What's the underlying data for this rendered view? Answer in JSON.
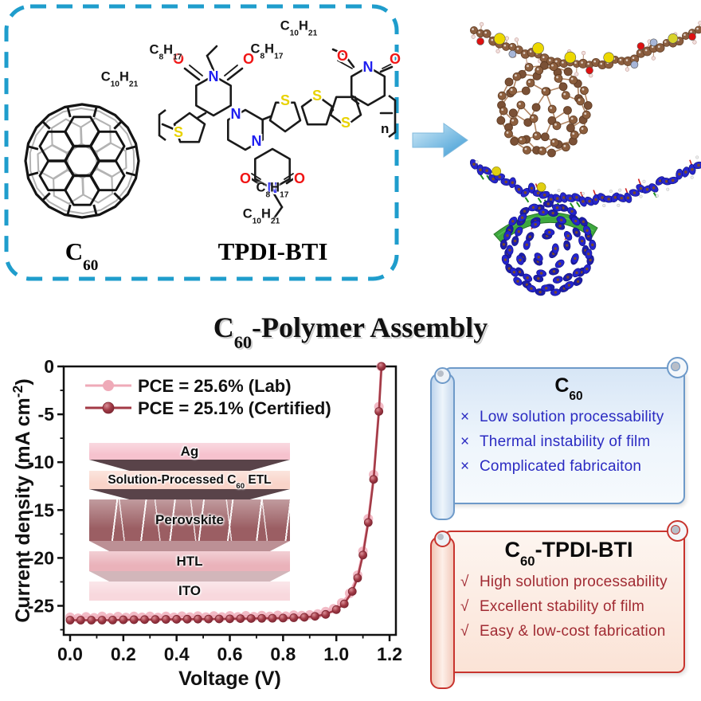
{
  "box": {
    "border_color": "#1f9dcc",
    "c60_label": "C_{60}",
    "polymer_label": "TPDI-BTI",
    "alkyl_labels": {
      "a1": "C_{8}H_{17}",
      "a2": "C_{10}H_{21}",
      "b1": "C_{10}H_{21}",
      "b2": "C_{8}H_{17}",
      "c1": "C_{8}H_{17}",
      "c2": "C_{10}H_{21}"
    },
    "repeat_label": "n",
    "atom_colors": {
      "S": "#e8d200",
      "N": "#2020f0",
      "O": "#f01515",
      "bond": "#1a1a1a"
    }
  },
  "title": "C_{60}-Polymer Assembly",
  "chart_data": {
    "type": "line",
    "xlabel": "Voltage (V)",
    "ylabel": "Current density (mA cm^{-2})",
    "xlim": [
      0,
      1.2
    ],
    "ylim": [
      -28,
      0
    ],
    "x_ticks": [
      0.0,
      0.2,
      0.4,
      0.6,
      0.8,
      1.0,
      1.2
    ],
    "y_ticks": [
      0,
      -5,
      -10,
      -15,
      -20,
      -25
    ],
    "grid": false,
    "legend_position": "top-left",
    "series": [
      {
        "name": "PCE = 25.6% (Lab)",
        "color": "#efaab8",
        "marker_radius": 6,
        "points": [
          [
            0.0,
            -26.2
          ],
          [
            0.03,
            -26.3
          ],
          [
            0.06,
            -26.15
          ],
          [
            0.09,
            -26.25
          ],
          [
            0.12,
            -26.1
          ],
          [
            0.15,
            -26.25
          ],
          [
            0.18,
            -26.12
          ],
          [
            0.21,
            -26.22
          ],
          [
            0.24,
            -26.1
          ],
          [
            0.27,
            -26.2
          ],
          [
            0.3,
            -26.1
          ],
          [
            0.33,
            -26.22
          ],
          [
            0.36,
            -26.1
          ],
          [
            0.39,
            -26.2
          ],
          [
            0.42,
            -26.08
          ],
          [
            0.45,
            -26.18
          ],
          [
            0.48,
            -26.07
          ],
          [
            0.51,
            -26.17
          ],
          [
            0.54,
            -26.06
          ],
          [
            0.57,
            -26.16
          ],
          [
            0.6,
            -26.05
          ],
          [
            0.63,
            -26.15
          ],
          [
            0.66,
            -26.04
          ],
          [
            0.69,
            -26.13
          ],
          [
            0.72,
            -26.02
          ],
          [
            0.75,
            -26.1
          ],
          [
            0.78,
            -26.0
          ],
          [
            0.81,
            -26.08
          ],
          [
            0.84,
            -25.98
          ],
          [
            0.87,
            -26.02
          ],
          [
            0.9,
            -25.95
          ],
          [
            0.93,
            -25.85
          ],
          [
            0.96,
            -25.6
          ],
          [
            0.99,
            -25.3
          ],
          [
            1.02,
            -24.7
          ],
          [
            1.05,
            -23.7
          ],
          [
            1.08,
            -21.8
          ],
          [
            1.1,
            -19.3
          ],
          [
            1.12,
            -15.9
          ],
          [
            1.14,
            -11.3
          ],
          [
            1.16,
            -4.2
          ],
          [
            1.168,
            0.0
          ]
        ]
      },
      {
        "name": "PCE = 25.1% (Certified)",
        "color": "#a33a46",
        "marker_radius": 5,
        "points": [
          [
            0.0,
            -26.5
          ],
          [
            0.04,
            -26.5
          ],
          [
            0.08,
            -26.5
          ],
          [
            0.12,
            -26.5
          ],
          [
            0.16,
            -26.49
          ],
          [
            0.2,
            -26.46
          ],
          [
            0.24,
            -26.45
          ],
          [
            0.28,
            -26.44
          ],
          [
            0.32,
            -26.43
          ],
          [
            0.36,
            -26.42
          ],
          [
            0.4,
            -26.41
          ],
          [
            0.44,
            -26.4
          ],
          [
            0.48,
            -26.39
          ],
          [
            0.52,
            -26.38
          ],
          [
            0.56,
            -26.37
          ],
          [
            0.6,
            -26.36
          ],
          [
            0.64,
            -26.34
          ],
          [
            0.68,
            -26.33
          ],
          [
            0.72,
            -26.31
          ],
          [
            0.76,
            -26.3
          ],
          [
            0.8,
            -26.28
          ],
          [
            0.84,
            -26.25
          ],
          [
            0.88,
            -26.2
          ],
          [
            0.92,
            -26.1
          ],
          [
            0.96,
            -25.9
          ],
          [
            1.0,
            -25.4
          ],
          [
            1.03,
            -24.8
          ],
          [
            1.06,
            -23.5
          ],
          [
            1.08,
            -22.1
          ],
          [
            1.1,
            -19.7
          ],
          [
            1.12,
            -16.3
          ],
          [
            1.14,
            -11.8
          ],
          [
            1.16,
            -4.7
          ],
          [
            1.17,
            0.0
          ]
        ]
      }
    ],
    "inset": {
      "layers": [
        {
          "label": "Ag",
          "color": "#f6c2ce"
        },
        {
          "label": "Solution-Processed C_{60} ETL",
          "color": "#f9d4c9"
        },
        {
          "label": "Perovskite",
          "color": "#9b5e63"
        },
        {
          "label": "HTL",
          "color": "#eab2ba"
        },
        {
          "label": "ITO",
          "color": "#f8d8dd"
        }
      ],
      "separators": [
        "#594349",
        "#594349",
        "#bc9095",
        "#d2b6ba"
      ]
    }
  },
  "scrolls": {
    "blue": {
      "title": "C_{60}",
      "bullet": "×",
      "items": [
        "Low solution processability",
        "Thermal instability of film",
        "Complicated fabricaiton"
      ],
      "text_color": "#2b2bc2",
      "border_color": "#6e9ac9"
    },
    "red": {
      "title": "C_{60}-TPDI-BTI",
      "bullet": "√",
      "items": [
        "High solution processability",
        "Excellent stability of film",
        "Easy & low-cost fabrication"
      ],
      "text_color": "#a12b33",
      "border_color": "#c8342e"
    }
  }
}
